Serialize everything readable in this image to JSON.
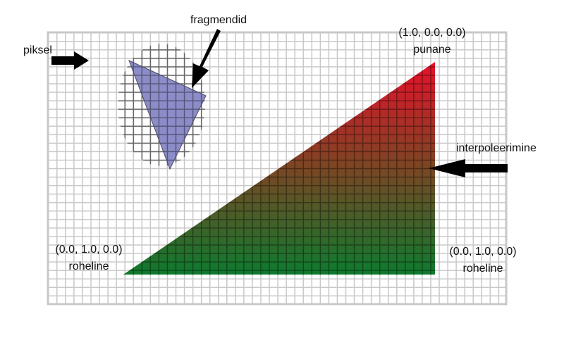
{
  "labels": {
    "pixel": "piksel",
    "fragments": "fragmendid",
    "interpolation": "interpoleerimine",
    "top_vertex_coords": "(1.0, 0.0, 0.0)",
    "top_vertex_color": "punane",
    "left_vertex_coords": "(0.0, 1.0, 0.0)",
    "left_vertex_color": "roheline",
    "right_vertex_coords": "(0.0, 1.0, 0.0)",
    "right_vertex_color": "roheline"
  },
  "colors": {
    "grid": "#c8c8c8",
    "background": "#ffffff",
    "rasterized_ring": "#666666",
    "fragment_fill": "#8c8cc8",
    "vertex_red": "#e8102a",
    "vertex_green": "#0e7a2e",
    "arrow": "#000000"
  }
}
